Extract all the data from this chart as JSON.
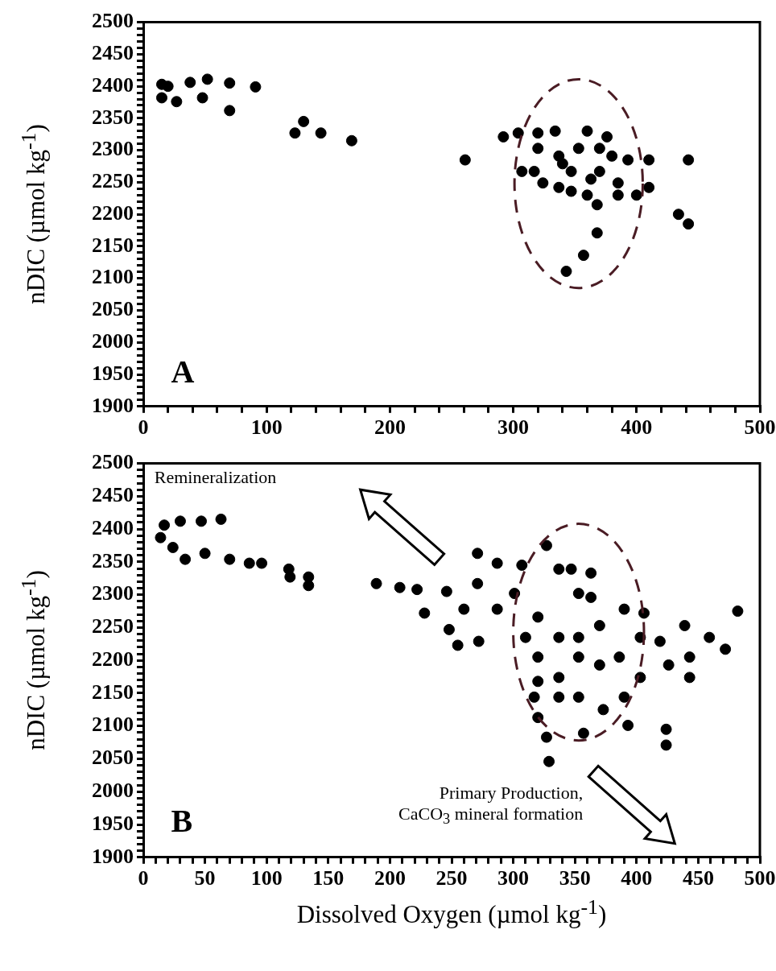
{
  "chart_data": [
    {
      "type": "scatter",
      "ylabel": "nDIC (µmol kg$^{-1}$)",
      "annotations": [
        "A"
      ],
      "color": "#000000",
      "marker": "circle",
      "grid": false,
      "legend": false,
      "x": [
        15,
        20,
        15,
        27,
        38,
        52,
        48,
        70,
        70,
        91,
        123,
        130,
        144,
        169,
        261,
        292,
        304,
        320,
        334,
        360,
        376,
        320,
        337,
        353,
        370,
        380,
        317,
        307,
        324,
        337,
        347,
        360,
        368,
        363,
        347,
        340,
        370,
        393,
        410,
        442,
        385,
        385,
        400,
        410,
        434,
        442,
        368,
        357,
        343
      ],
      "values": [
        2403,
        2400,
        2382,
        2376,
        2406,
        2411,
        2382,
        2405,
        2362,
        2399,
        2327,
        2345,
        2327,
        2315,
        2285,
        2321,
        2327,
        2327,
        2330,
        2330,
        2321,
        2303,
        2291,
        2303,
        2303,
        2291,
        2267,
        2267,
        2249,
        2242,
        2236,
        2230,
        2215,
        2255,
        2267,
        2279,
        2267,
        2285,
        2285,
        2285,
        2249,
        2230,
        2230,
        2242,
        2200,
        2185,
        2171,
        2136,
        2111
      ],
      "xlim": [
        0,
        500
      ],
      "xticks": [
        0,
        {
          "value": 20,
          "label": null
        },
        {
          "value": 40,
          "label": null
        },
        {
          "value": 60,
          "label": null
        },
        {
          "value": 80,
          "label": null
        },
        100,
        {
          "value": 120,
          "label": null
        },
        {
          "value": 140,
          "label": null
        },
        {
          "value": 160,
          "label": null
        },
        {
          "value": 180,
          "label": null
        },
        200,
        {
          "value": 220,
          "label": null
        },
        {
          "value": 240,
          "label": null
        },
        {
          "value": 260,
          "label": null
        },
        {
          "value": 280,
          "label": null
        },
        300,
        {
          "value": 320,
          "label": null
        },
        {
          "value": 340,
          "label": null
        },
        {
          "value": 360,
          "label": null
        },
        {
          "value": 380,
          "label": null
        },
        400,
        {
          "value": 420,
          "label": null
        },
        {
          "value": 440,
          "label": null
        },
        {
          "value": 460,
          "label": null
        },
        {
          "value": 480,
          "label": null
        },
        500
      ],
      "ylim": [
        1900,
        2500
      ],
      "yticks": [
        1900,
        {
          "value": 1910,
          "label": null
        },
        {
          "value": 1920,
          "label": null
        },
        {
          "value": 1930,
          "label": null
        },
        {
          "value": 1940,
          "label": null
        },
        1950,
        {
          "value": 1960,
          "label": null
        },
        {
          "value": 1970,
          "label": null
        },
        {
          "value": 1980,
          "label": null
        },
        {
          "value": 1990,
          "label": null
        },
        2000,
        {
          "value": 2010,
          "label": null
        },
        {
          "value": 2020,
          "label": null
        },
        {
          "value": 2030,
          "label": null
        },
        {
          "value": 2040,
          "label": null
        },
        2050,
        {
          "value": 2060,
          "label": null
        },
        {
          "value": 2070,
          "label": null
        },
        {
          "value": 2080,
          "label": null
        },
        {
          "value": 2090,
          "label": null
        },
        2100,
        {
          "value": 2110,
          "label": null
        },
        {
          "value": 2120,
          "label": null
        },
        {
          "value": 2130,
          "label": null
        },
        {
          "value": 2140,
          "label": null
        },
        2150,
        {
          "value": 2160,
          "label": null
        },
        {
          "value": 2170,
          "label": null
        },
        {
          "value": 2180,
          "label": null
        },
        {
          "value": 2190,
          "label": null
        },
        2200,
        {
          "value": 2210,
          "label": null
        },
        {
          "value": 2220,
          "label": null
        },
        {
          "value": 2230,
          "label": null
        },
        {
          "value": 2240,
          "label": null
        },
        2250,
        {
          "value": 2260,
          "label": null
        },
        {
          "value": 2270,
          "label": null
        },
        {
          "value": 2280,
          "label": null
        },
        {
          "value": 2290,
          "label": null
        },
        2300,
        {
          "value": 2310,
          "label": null
        },
        {
          "value": 2320,
          "label": null
        },
        {
          "value": 2330,
          "label": null
        },
        {
          "value": 2340,
          "label": null
        },
        2350,
        {
          "value": 2360,
          "label": null
        },
        {
          "value": 2370,
          "label": null
        },
        {
          "value": 2380,
          "label": null
        },
        {
          "value": 2390,
          "label": null
        },
        2400,
        {
          "value": 2410,
          "label": null
        },
        {
          "value": 2420,
          "label": null
        },
        {
          "value": 2430,
          "label": null
        },
        {
          "value": 2440,
          "label": null
        },
        2450,
        {
          "value": 2460,
          "label": null
        },
        {
          "value": 2470,
          "label": null
        },
        {
          "value": 2480,
          "label": null
        },
        {
          "value": 2490,
          "label": null
        },
        2500
      ]
    },
    {
      "type": "scatter",
      "xlabel": "Dissolved Oxygen (µmol kg$^{-1}$)",
      "ylabel": "nDIC (µmol kg$^{-1}$)",
      "annotations": [
        "Remineralization",
        "Primary Production,\nCaCO$_{3}$ mineral formation",
        "B"
      ],
      "color": "#000000",
      "marker": "circle",
      "grid": false,
      "legend": false,
      "x": [
        14,
        17,
        30,
        47,
        63,
        24,
        34,
        50,
        70,
        86,
        96,
        118,
        119,
        134,
        134,
        189,
        208,
        222,
        246,
        271,
        287,
        271,
        228,
        248,
        255,
        272,
        260,
        287,
        301,
        307,
        327,
        337,
        347,
        363,
        363,
        353,
        320,
        337,
        320,
        353,
        370,
        390,
        406,
        403,
        419,
        439,
        459,
        472,
        482,
        443,
        443,
        426,
        403,
        320,
        337,
        370,
        386,
        353,
        320,
        327,
        329,
        357,
        373,
        390,
        393,
        424,
        424,
        317,
        310,
        337,
        353
      ],
      "values": [
        2387,
        2406,
        2412,
        2412,
        2415,
        2372,
        2354,
        2363,
        2354,
        2348,
        2348,
        2339,
        2327,
        2327,
        2314,
        2317,
        2311,
        2308,
        2305,
        2363,
        2348,
        2317,
        2272,
        2247,
        2223,
        2229,
        2278,
        2278,
        2302,
        2345,
        2375,
        2339,
        2339,
        2333,
        2296,
        2302,
        2266,
        2235,
        2205,
        2235,
        2253,
        2278,
        2272,
        2235,
        2229,
        2253,
        2235,
        2217,
        2275,
        2205,
        2174,
        2193,
        2174,
        2168,
        2174,
        2193,
        2205,
        2144,
        2113,
        2083,
        2046,
        2089,
        2125,
        2144,
        2101,
        2095,
        2071,
        2144,
        2235,
        2144,
        2205
      ],
      "xlim": [
        0,
        500
      ],
      "xticks": [
        0,
        {
          "value": 10,
          "label": null
        },
        {
          "value": 20,
          "label": null
        },
        {
          "value": 30,
          "label": null
        },
        {
          "value": 40,
          "label": null
        },
        50,
        {
          "value": 60,
          "label": null
        },
        {
          "value": 70,
          "label": null
        },
        {
          "value": 80,
          "label": null
        },
        {
          "value": 90,
          "label": null
        },
        100,
        {
          "value": 110,
          "label": null
        },
        {
          "value": 120,
          "label": null
        },
        {
          "value": 130,
          "label": null
        },
        {
          "value": 140,
          "label": null
        },
        150,
        {
          "value": 160,
          "label": null
        },
        {
          "value": 170,
          "label": null
        },
        {
          "value": 180,
          "label": null
        },
        {
          "value": 190,
          "label": null
        },
        200,
        {
          "value": 210,
          "label": null
        },
        {
          "value": 220,
          "label": null
        },
        {
          "value": 230,
          "label": null
        },
        {
          "value": 240,
          "label": null
        },
        250,
        {
          "value": 260,
          "label": null
        },
        {
          "value": 270,
          "label": null
        },
        {
          "value": 280,
          "label": null
        },
        {
          "value": 290,
          "label": null
        },
        300,
        {
          "value": 310,
          "label": null
        },
        {
          "value": 320,
          "label": null
        },
        {
          "value": 330,
          "label": null
        },
        {
          "value": 340,
          "label": null
        },
        350,
        {
          "value": 360,
          "label": null
        },
        {
          "value": 370,
          "label": null
        },
        {
          "value": 380,
          "label": null
        },
        {
          "value": 390,
          "label": null
        },
        400,
        {
          "value": 410,
          "label": null
        },
        {
          "value": 420,
          "label": null
        },
        {
          "value": 430,
          "label": null
        },
        {
          "value": 440,
          "label": null
        },
        450,
        {
          "value": 460,
          "label": null
        },
        {
          "value": 470,
          "label": null
        },
        {
          "value": 480,
          "label": null
        },
        {
          "value": 490,
          "label": null
        },
        500
      ],
      "ylim": [
        1900,
        2500
      ],
      "yticks": [
        1900,
        {
          "value": 1910,
          "label": null
        },
        {
          "value": 1920,
          "label": null
        },
        {
          "value": 1930,
          "label": null
        },
        {
          "value": 1940,
          "label": null
        },
        1950,
        {
          "value": 1960,
          "label": null
        },
        {
          "value": 1970,
          "label": null
        },
        {
          "value": 1980,
          "label": null
        },
        {
          "value": 1990,
          "label": null
        },
        2000,
        {
          "value": 2010,
          "label": null
        },
        {
          "value": 2020,
          "label": null
        },
        {
          "value": 2030,
          "label": null
        },
        {
          "value": 2040,
          "label": null
        },
        2050,
        {
          "value": 2060,
          "label": null
        },
        {
          "value": 2070,
          "label": null
        },
        {
          "value": 2080,
          "label": null
        },
        {
          "value": 2090,
          "label": null
        },
        2100,
        {
          "value": 2110,
          "label": null
        },
        {
          "value": 2120,
          "label": null
        },
        {
          "value": 2130,
          "label": null
        },
        {
          "value": 2140,
          "label": null
        },
        2150,
        {
          "value": 2160,
          "label": null
        },
        {
          "value": 2170,
          "label": null
        },
        {
          "value": 2180,
          "label": null
        },
        {
          "value": 2190,
          "label": null
        },
        2200,
        {
          "value": 2210,
          "label": null
        },
        {
          "value": 2220,
          "label": null
        },
        {
          "value": 2230,
          "label": null
        },
        {
          "value": 2240,
          "label": null
        },
        2250,
        {
          "value": 2260,
          "label": null
        },
        {
          "value": 2270,
          "label": null
        },
        {
          "value": 2280,
          "label": null
        },
        {
          "value": 2290,
          "label": null
        },
        2300,
        {
          "value": 2310,
          "label": null
        },
        {
          "value": 2320,
          "label": null
        },
        {
          "value": 2330,
          "label": null
        },
        {
          "value": 2340,
          "label": null
        },
        2350,
        {
          "value": 2360,
          "label": null
        },
        {
          "value": 2370,
          "label": null
        },
        {
          "value": 2380,
          "label": null
        },
        {
          "value": 2390,
          "label": null
        },
        2400,
        {
          "value": 2410,
          "label": null
        },
        {
          "value": 2420,
          "label": null
        },
        {
          "value": 2430,
          "label": null
        },
        {
          "value": 2440,
          "label": null
        },
        2450,
        {
          "value": 2460,
          "label": null
        },
        {
          "value": 2470,
          "label": null
        },
        {
          "value": 2480,
          "label": null
        },
        {
          "value": 2490,
          "label": null
        },
        2500
      ]
    }
  ]
}
